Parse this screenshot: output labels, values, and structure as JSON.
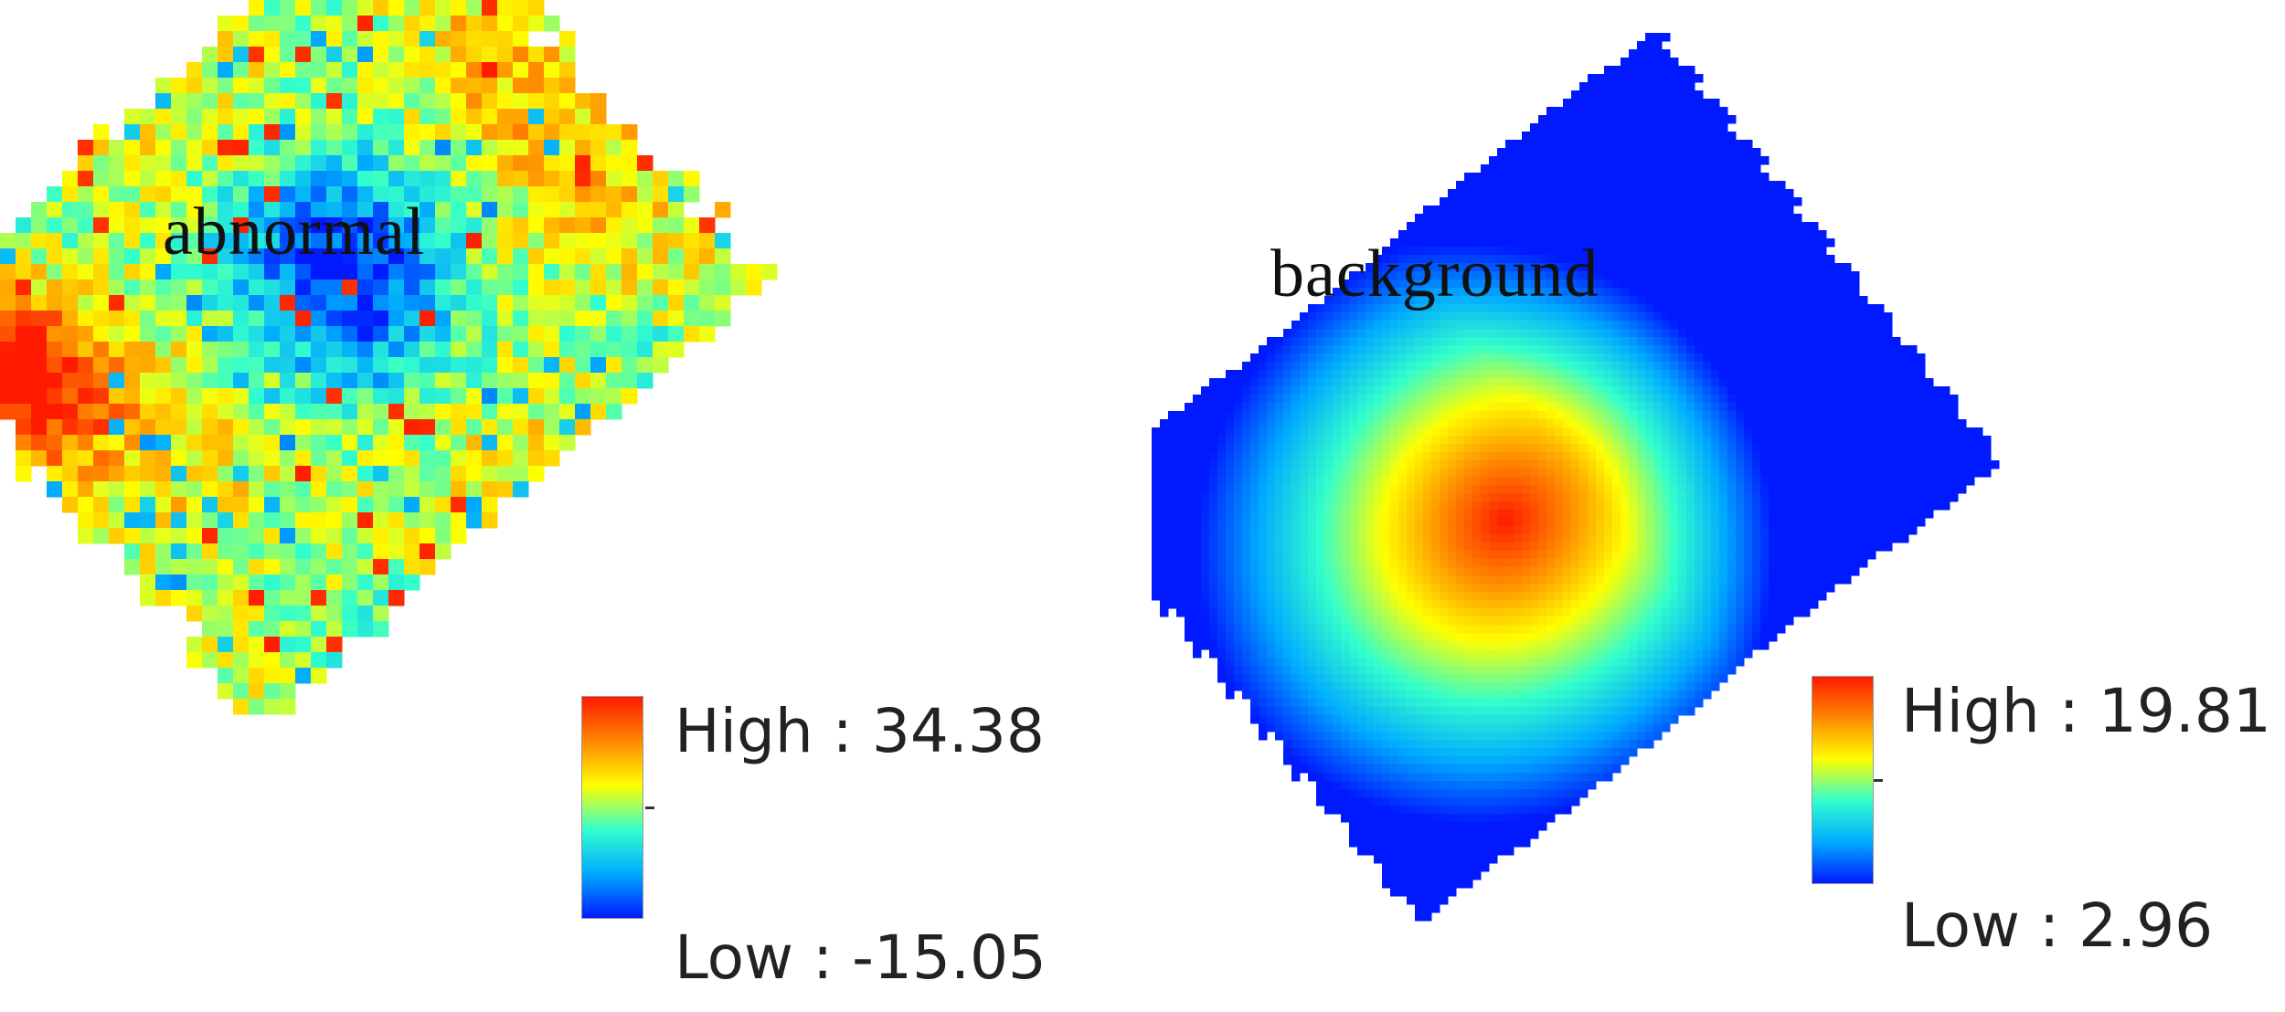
{
  "panels": [
    {
      "label": "abnormal",
      "legend": {
        "high_label": "High : 34.38",
        "low_label": "Low : -15.05",
        "high_value": 34.38,
        "low_value": -15.05
      }
    },
    {
      "label": "background",
      "legend": {
        "high_label": "High : 19.81",
        "low_label": "Low : 2.96",
        "high_value": 19.81,
        "low_value": 2.96
      }
    }
  ],
  "colormap": [
    "#0019ff",
    "#00aaff",
    "#33ffcc",
    "#ffff00",
    "#ff8800",
    "#ff1a00"
  ]
}
